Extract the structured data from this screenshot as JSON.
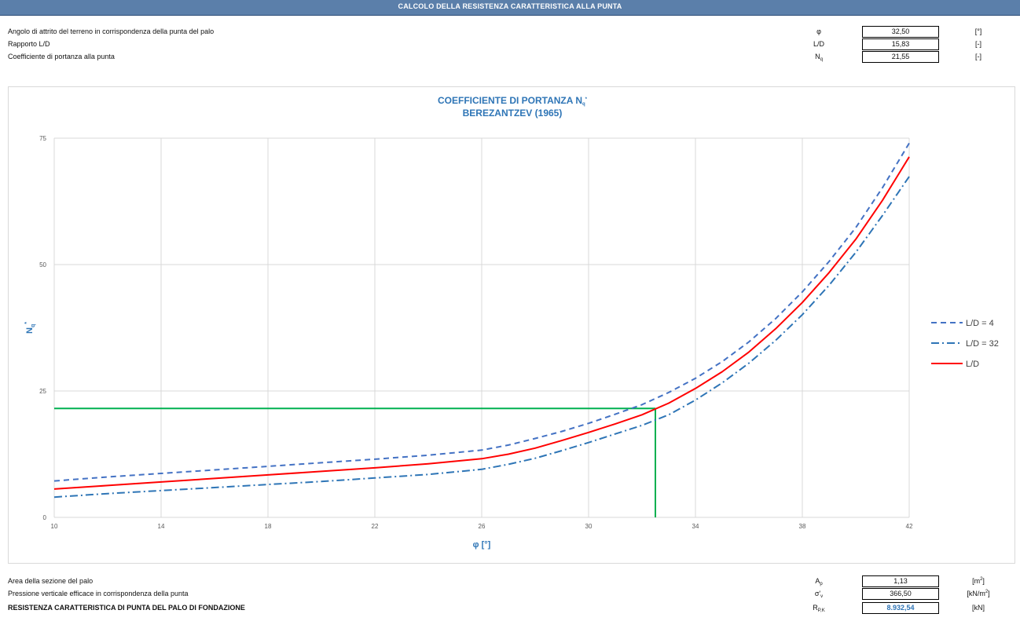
{
  "header": {
    "title": "CALCOLO DELLA RESISTENZA CARATTERISTICA ALLA PUNTA"
  },
  "inputs": [
    {
      "label": "Angolo di attrito del terreno in corrispondenza della punta del palo",
      "symbol": "φ",
      "symbol_sub": "",
      "symbol_prime": "",
      "value": "32,50",
      "unit": "[°]",
      "unit_sup": "",
      "unit_tail": ""
    },
    {
      "label": "Rapporto L/D",
      "symbol": "L/D",
      "symbol_sub": "",
      "symbol_prime": "",
      "value": "15,83",
      "unit": "[-]",
      "unit_sup": "",
      "unit_tail": ""
    },
    {
      "label": "Coefficiente di portanza alla punta",
      "symbol": "N",
      "symbol_sub": "q",
      "symbol_prime": "",
      "value": "21,55",
      "unit": "[-]",
      "unit_sup": "",
      "unit_tail": ""
    }
  ],
  "outputs": [
    {
      "label": "Area della sezione del palo",
      "symbol": "A",
      "symbol_sub": "p",
      "symbol_prime": "",
      "value": "1,13",
      "unit": "[m",
      "unit_sup": "2",
      "unit_tail": "]"
    },
    {
      "label": "Pressione verticale efficace in corrispondenza della punta",
      "symbol": "σ'",
      "symbol_sub": "v",
      "symbol_prime": "",
      "value": "366,50",
      "unit": "[kN/m",
      "unit_sup": "2",
      "unit_tail": "]"
    },
    {
      "label": "RESISTENZA CARATTERISTICA DI PUNTA DEL PALO DI FONDAZIONE",
      "symbol": "R",
      "symbol_sub": "P,K",
      "symbol_prime": "",
      "value": "8.932,54",
      "unit": "[kN]",
      "unit_sup": "",
      "unit_tail": ""
    }
  ],
  "chart_data": {
    "type": "line",
    "title_line1": "COEFFICIENTE DI PORTANZA N",
    "title_sub": "q",
    "title_star": "*",
    "title_line2": "BEREZANTZEV (1965)",
    "xlabel": "φ [°]",
    "ylabel": "N",
    "ylabel_sub": "q",
    "ylabel_sup": "*",
    "xlim": [
      10,
      42
    ],
    "ylim": [
      0,
      75
    ],
    "xticks": [
      10,
      14,
      18,
      22,
      26,
      30,
      34,
      38,
      42
    ],
    "yticks": [
      0,
      25,
      50,
      75
    ],
    "grid": true,
    "legend_position": "right",
    "x": [
      10,
      12,
      14,
      16,
      18,
      20,
      22,
      24,
      26,
      27,
      28,
      29,
      30,
      31,
      32,
      33,
      34,
      35,
      36,
      37,
      38,
      39,
      40,
      41,
      42
    ],
    "series": [
      {
        "name": "L/D = 4",
        "color": "#4472c4",
        "dash": "7,5",
        "values": [
          7.2,
          8.0,
          8.7,
          9.4,
          10.1,
          10.8,
          11.5,
          12.3,
          13.3,
          14.3,
          15.6,
          17.0,
          18.6,
          20.4,
          22.3,
          24.7,
          27.5,
          30.8,
          34.7,
          39.3,
          44.6,
          50.6,
          57.3,
          65.2,
          74.0
        ]
      },
      {
        "name": "L/D = 32",
        "color": "#2e75b6",
        "dash": "10,4,2,4",
        "values": [
          4.0,
          4.7,
          5.3,
          5.9,
          6.5,
          7.1,
          7.8,
          8.5,
          9.5,
          10.5,
          11.7,
          13.2,
          14.8,
          16.5,
          18.2,
          20.3,
          23.2,
          26.6,
          30.5,
          35.0,
          40.1,
          45.9,
          52.4,
          59.7,
          67.4
        ]
      },
      {
        "name": "L/D",
        "color": "#ff0000",
        "dash": "",
        "values": [
          5.6,
          6.3,
          7.0,
          7.7,
          8.4,
          9.1,
          9.8,
          10.6,
          11.6,
          12.5,
          13.7,
          15.2,
          16.8,
          18.5,
          20.3,
          22.6,
          25.5,
          28.8,
          32.7,
          37.3,
          42.5,
          48.4,
          55.0,
          62.7,
          71.3
        ]
      }
    ],
    "reference": {
      "x": 32.5,
      "y": 21.55,
      "color": "#00b050"
    }
  }
}
